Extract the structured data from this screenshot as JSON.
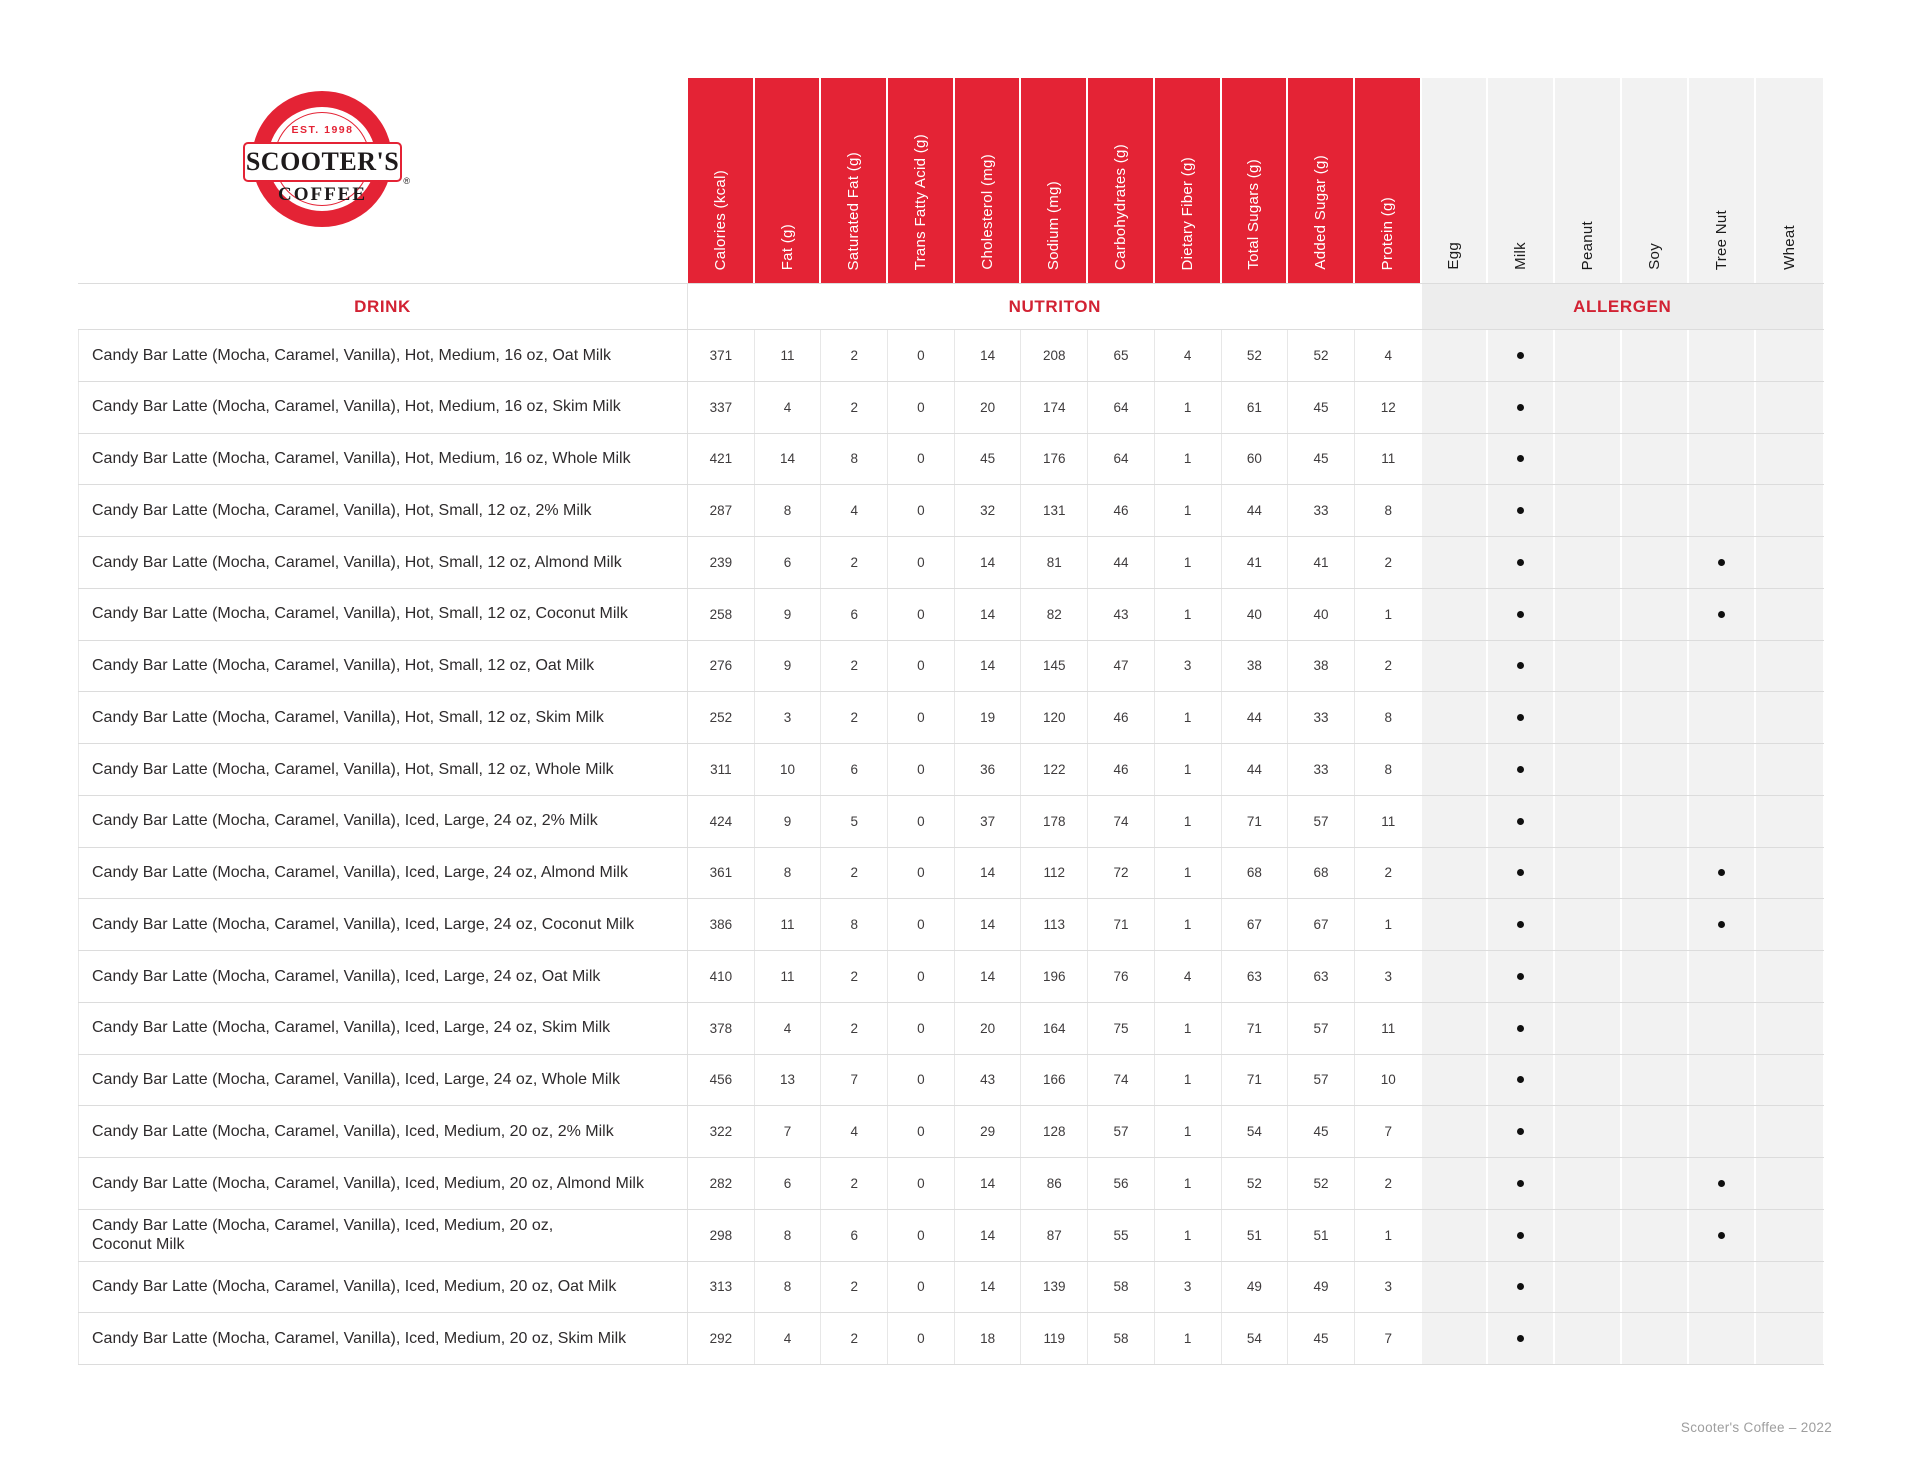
{
  "logo": {
    "est": "EST. 1998",
    "name": "SCOOTER'S",
    "coffee": "COFFEE",
    "reg": "®"
  },
  "sections": {
    "drink": "DRINK",
    "nutrition": "NUTRITON",
    "allergen": "ALLERGEN"
  },
  "nutrition_columns": [
    "Calories (kcal)",
    "Fat (g)",
    "Saturated Fat (g)",
    "Trans Fatty Acid (g)",
    "Cholesterol (mg)",
    "Sodium (mg)",
    "Carbohydrates (g)",
    "Dietary Fiber (g)",
    "Total Sugars (g)",
    "Added Sugar (g)",
    "Protein (g)"
  ],
  "allergen_columns": [
    "Egg",
    "Milk",
    "Peanut",
    "Soy",
    "Tree Nut",
    "Wheat"
  ],
  "colors": {
    "brand_red": "#E42335",
    "section_label_red": "#D22233",
    "allergen_bg": "#F2F2F2",
    "grid_line": "#DCDCDC",
    "body_text": "#2E2B2C",
    "footer_text": "#9E9E9E"
  },
  "rows": [
    {
      "name": "Candy Bar Latte (Mocha, Caramel, Vanilla), Hot, Medium, 16 oz, Oat Milk",
      "values": [
        371,
        11,
        2,
        0,
        14,
        208,
        65,
        4,
        52,
        52,
        4
      ],
      "allergens": [
        0,
        1,
        0,
        0,
        0,
        0
      ]
    },
    {
      "name": "Candy Bar Latte (Mocha, Caramel, Vanilla), Hot, Medium, 16 oz, Skim Milk",
      "values": [
        337,
        4,
        2,
        0,
        20,
        174,
        64,
        1,
        61,
        45,
        12
      ],
      "allergens": [
        0,
        1,
        0,
        0,
        0,
        0
      ]
    },
    {
      "name": "Candy Bar Latte (Mocha, Caramel, Vanilla), Hot, Medium, 16 oz, Whole Milk",
      "values": [
        421,
        14,
        8,
        0,
        45,
        176,
        64,
        1,
        60,
        45,
        11
      ],
      "allergens": [
        0,
        1,
        0,
        0,
        0,
        0
      ]
    },
    {
      "name": "Candy Bar Latte (Mocha, Caramel, Vanilla), Hot, Small, 12 oz, 2% Milk",
      "values": [
        287,
        8,
        4,
        0,
        32,
        131,
        46,
        1,
        44,
        33,
        8
      ],
      "allergens": [
        0,
        1,
        0,
        0,
        0,
        0
      ]
    },
    {
      "name": "Candy Bar Latte (Mocha, Caramel, Vanilla), Hot, Small, 12 oz, Almond Milk",
      "values": [
        239,
        6,
        2,
        0,
        14,
        81,
        44,
        1,
        41,
        41,
        2
      ],
      "allergens": [
        0,
        1,
        0,
        0,
        1,
        0
      ]
    },
    {
      "name": "Candy Bar Latte (Mocha, Caramel, Vanilla), Hot, Small, 12 oz, Coconut Milk",
      "values": [
        258,
        9,
        6,
        0,
        14,
        82,
        43,
        1,
        40,
        40,
        1
      ],
      "allergens": [
        0,
        1,
        0,
        0,
        1,
        0
      ]
    },
    {
      "name": "Candy Bar Latte (Mocha, Caramel, Vanilla), Hot, Small, 12 oz, Oat Milk",
      "values": [
        276,
        9,
        2,
        0,
        14,
        145,
        47,
        3,
        38,
        38,
        2
      ],
      "allergens": [
        0,
        1,
        0,
        0,
        0,
        0
      ]
    },
    {
      "name": "Candy Bar Latte (Mocha, Caramel, Vanilla), Hot, Small, 12 oz, Skim Milk",
      "values": [
        252,
        3,
        2,
        0,
        19,
        120,
        46,
        1,
        44,
        33,
        8
      ],
      "allergens": [
        0,
        1,
        0,
        0,
        0,
        0
      ]
    },
    {
      "name": "Candy Bar Latte (Mocha, Caramel, Vanilla), Hot, Small, 12 oz, Whole Milk",
      "values": [
        311,
        10,
        6,
        0,
        36,
        122,
        46,
        1,
        44,
        33,
        8
      ],
      "allergens": [
        0,
        1,
        0,
        0,
        0,
        0
      ]
    },
    {
      "name": "Candy Bar Latte (Mocha, Caramel, Vanilla), Iced, Large, 24 oz, 2% Milk",
      "values": [
        424,
        9,
        5,
        0,
        37,
        178,
        74,
        1,
        71,
        57,
        11
      ],
      "allergens": [
        0,
        1,
        0,
        0,
        0,
        0
      ]
    },
    {
      "name": "Candy Bar Latte (Mocha, Caramel, Vanilla), Iced, Large, 24 oz, Almond Milk",
      "values": [
        361,
        8,
        2,
        0,
        14,
        112,
        72,
        1,
        68,
        68,
        2
      ],
      "allergens": [
        0,
        1,
        0,
        0,
        1,
        0
      ]
    },
    {
      "name": "Candy Bar Latte (Mocha, Caramel, Vanilla), Iced, Large, 24 oz, Coconut Milk",
      "values": [
        386,
        11,
        8,
        0,
        14,
        113,
        71,
        1,
        67,
        67,
        1
      ],
      "allergens": [
        0,
        1,
        0,
        0,
        1,
        0
      ]
    },
    {
      "name": "Candy Bar Latte (Mocha, Caramel, Vanilla), Iced, Large, 24 oz, Oat Milk",
      "values": [
        410,
        11,
        2,
        0,
        14,
        196,
        76,
        4,
        63,
        63,
        3
      ],
      "allergens": [
        0,
        1,
        0,
        0,
        0,
        0
      ]
    },
    {
      "name": "Candy Bar Latte (Mocha, Caramel, Vanilla), Iced, Large, 24 oz, Skim Milk",
      "values": [
        378,
        4,
        2,
        0,
        20,
        164,
        75,
        1,
        71,
        57,
        11
      ],
      "allergens": [
        0,
        1,
        0,
        0,
        0,
        0
      ]
    },
    {
      "name": "Candy Bar Latte (Mocha, Caramel, Vanilla), Iced, Large, 24 oz, Whole Milk",
      "values": [
        456,
        13,
        7,
        0,
        43,
        166,
        74,
        1,
        71,
        57,
        10
      ],
      "allergens": [
        0,
        1,
        0,
        0,
        0,
        0
      ]
    },
    {
      "name": "Candy Bar Latte (Mocha, Caramel, Vanilla), Iced, Medium, 20 oz, 2% Milk",
      "values": [
        322,
        7,
        4,
        0,
        29,
        128,
        57,
        1,
        54,
        45,
        7
      ],
      "allergens": [
        0,
        1,
        0,
        0,
        0,
        0
      ]
    },
    {
      "name": "Candy Bar Latte (Mocha, Caramel, Vanilla), Iced, Medium, 20 oz, Almond Milk",
      "values": [
        282,
        6,
        2,
        0,
        14,
        86,
        56,
        1,
        52,
        52,
        2
      ],
      "allergens": [
        0,
        1,
        0,
        0,
        1,
        0
      ]
    },
    {
      "name": "Candy Bar Latte (Mocha, Caramel, Vanilla), Iced, Medium, 20 oz,",
      "name2": "Coconut Milk",
      "values": [
        298,
        8,
        6,
        0,
        14,
        87,
        55,
        1,
        51,
        51,
        1
      ],
      "allergens": [
        0,
        1,
        0,
        0,
        1,
        0
      ]
    },
    {
      "name": "Candy Bar Latte (Mocha, Caramel, Vanilla), Iced, Medium, 20 oz, Oat Milk",
      "values": [
        313,
        8,
        2,
        0,
        14,
        139,
        58,
        3,
        49,
        49,
        3
      ],
      "allergens": [
        0,
        1,
        0,
        0,
        0,
        0
      ]
    },
    {
      "name": "Candy Bar Latte (Mocha, Caramel, Vanilla), Iced, Medium, 20 oz, Skim Milk",
      "values": [
        292,
        4,
        2,
        0,
        18,
        119,
        58,
        1,
        54,
        45,
        7
      ],
      "allergens": [
        0,
        1,
        0,
        0,
        0,
        0
      ]
    }
  ],
  "page": {
    "footer": "Scooter's Coffee – 2022"
  }
}
